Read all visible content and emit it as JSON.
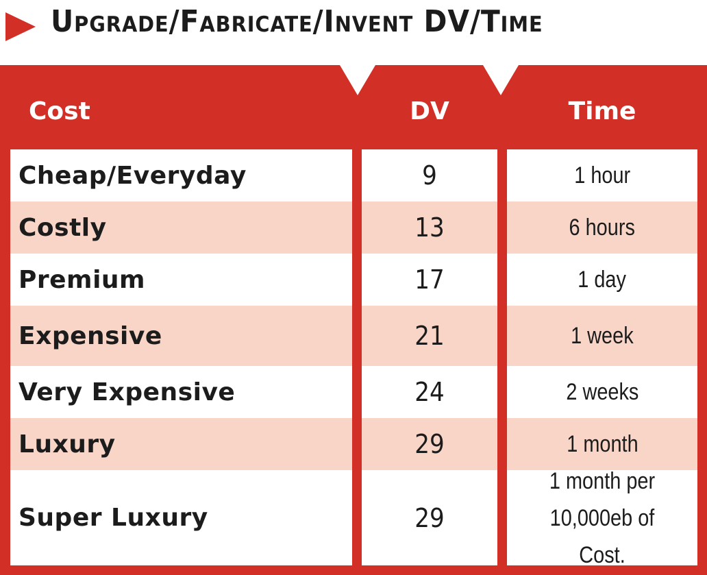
{
  "title": "Upgrade/Fabricate/Invent DV/Time",
  "colors": {
    "accent": "#d22f27",
    "row_alt": "#f9d5c7",
    "row": "#ffffff"
  },
  "headers": {
    "cost": "Cost",
    "dv": "DV",
    "time": "Time"
  },
  "rows": [
    {
      "cost": "Cheap/Everyday",
      "dv": "9",
      "time": "1 hour"
    },
    {
      "cost": "Costly",
      "dv": "13",
      "time": "6 hours"
    },
    {
      "cost": "Premium",
      "dv": "17",
      "time": "1 day"
    },
    {
      "cost": "Expensive",
      "dv": "21",
      "time": "1 week"
    },
    {
      "cost": "Very Expensive",
      "dv": "24",
      "time": "2 weeks"
    },
    {
      "cost": "Luxury",
      "dv": "29",
      "time": "1 month"
    },
    {
      "cost": "Super Luxury",
      "dv": "29",
      "time": "1 month per 10,000eb of Cost."
    }
  ]
}
